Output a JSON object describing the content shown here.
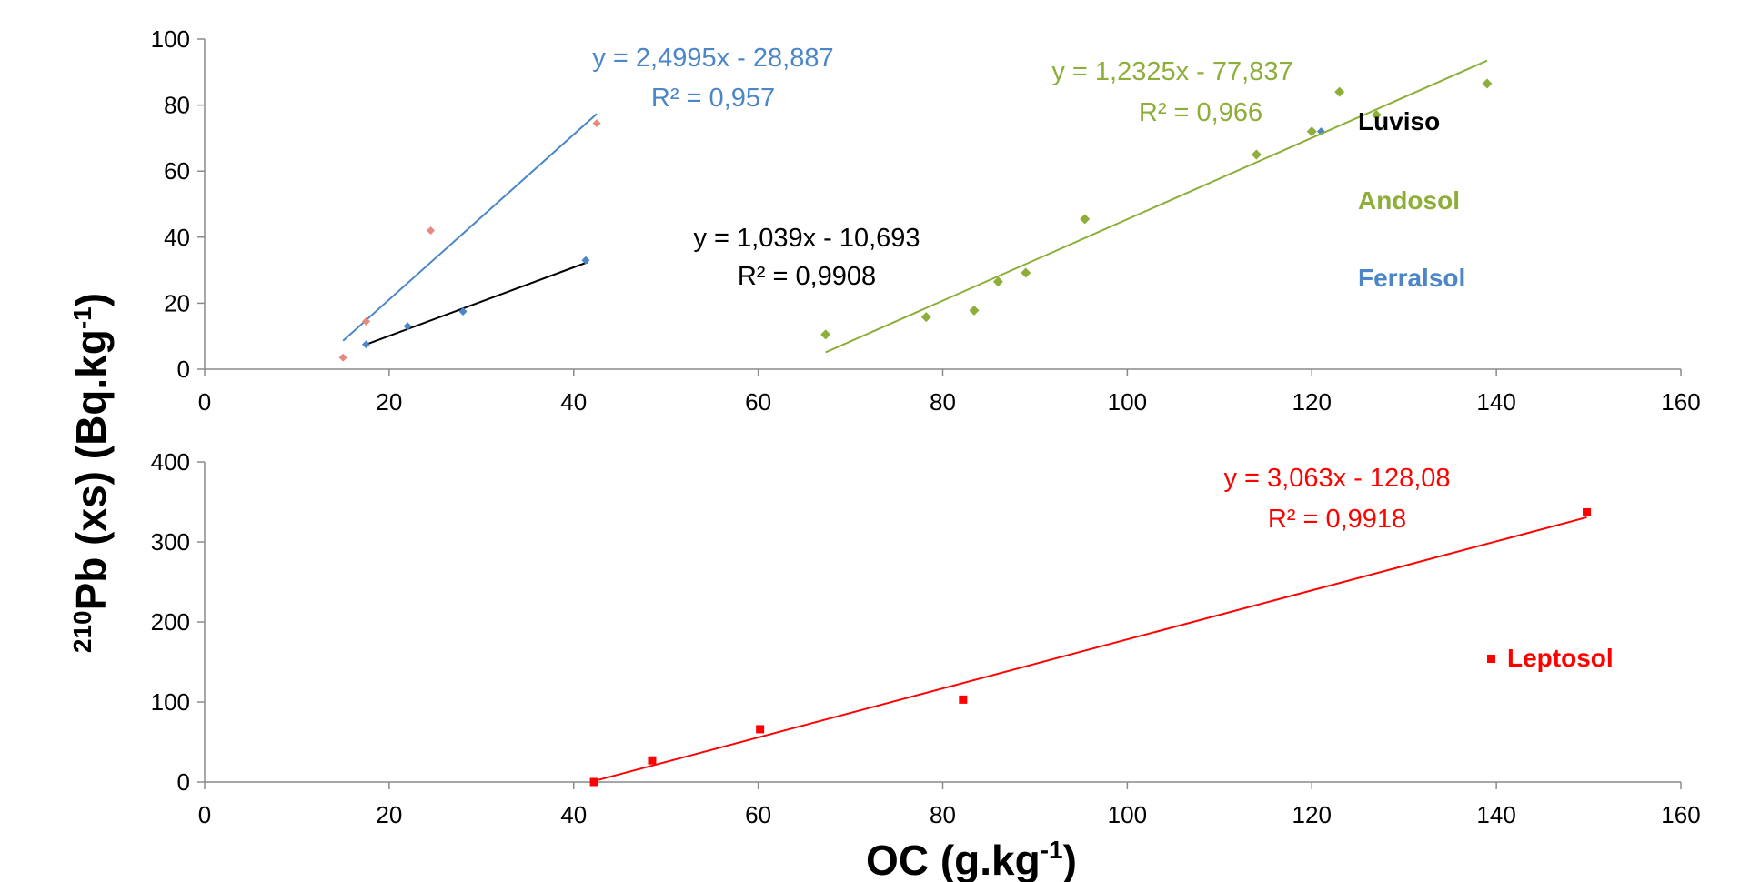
{
  "figure": {
    "ylabel_sup": "210",
    "ylabel_main": "Pb (xs) (Bq.kg",
    "ylabel_exp": "-1",
    "ylabel_close": ")",
    "xlabel_main": "OC (g.kg",
    "xlabel_exp": "-1",
    "xlabel_close": ")"
  },
  "colors": {
    "luviso": "#000000",
    "andosol": "#8DAE38",
    "ferralsol": "#4A86C8",
    "ferralsol_points": "#E8877E",
    "luviso_points": "#4A86C8",
    "leptosol": "#FF0000"
  },
  "chart_data": [
    {
      "type": "scatter",
      "xlim": [
        0,
        160
      ],
      "ylim": [
        0,
        100
      ],
      "x_ticks": [
        "0",
        "20",
        "40",
        "60",
        "80",
        "100",
        "120",
        "140",
        "160"
      ],
      "y_ticks": [
        "0",
        "20",
        "40",
        "60",
        "80",
        "100"
      ],
      "grid": false,
      "legend": [
        "Luviso",
        "Andosol",
        "Ferralsol"
      ],
      "series": [
        {
          "name": "Luviso",
          "points": [
            [
              17.5,
              7.5
            ],
            [
              22,
              13
            ],
            [
              28,
              17.5
            ],
            [
              41.3,
              33
            ],
            [
              121,
              72
            ]
          ],
          "trendline": {
            "x": [
              17.5,
              41.5
            ],
            "equation": "y = 1,039x - 10,693",
            "r2": "R² = 0,9908"
          }
        },
        {
          "name": "Andosol",
          "points": [
            [
              67.3,
              10.5
            ],
            [
              78.2,
              15.8
            ],
            [
              83.4,
              17.8
            ],
            [
              86,
              26.5
            ],
            [
              89,
              29.2
            ],
            [
              95.4,
              45.5
            ],
            [
              114,
              65
            ],
            [
              120,
              72
            ],
            [
              123,
              84
            ],
            [
              127,
              77
            ],
            [
              139,
              86.5
            ]
          ],
          "trendline": {
            "x": [
              67.3,
              139
            ],
            "equation": "y = 1,2325x - 77,837",
            "r2": "R² = 0,966"
          }
        },
        {
          "name": "Ferralsol",
          "points": [
            [
              15,
              3.5
            ],
            [
              17.5,
              14.5
            ],
            [
              24.5,
              42
            ],
            [
              42.5,
              74.5
            ]
          ],
          "trendline": {
            "x": [
              15,
              42.5
            ],
            "equation": "y = 2,4995x - 28,887",
            "r2": "R² = 0,957"
          }
        }
      ]
    },
    {
      "type": "scatter",
      "xlim": [
        0,
        160
      ],
      "ylim": [
        0,
        400
      ],
      "x_ticks": [
        "0",
        "20",
        "40",
        "60",
        "80",
        "100",
        "120",
        "140",
        "160"
      ],
      "y_ticks": [
        "0",
        "100",
        "200",
        "300",
        "400"
      ],
      "grid": false,
      "legend": [
        "Leptosol"
      ],
      "series": [
        {
          "name": "Leptosol",
          "points": [
            [
              42.2,
              0
            ],
            [
              48.5,
              27
            ],
            [
              60.2,
              66
            ],
            [
              82.2,
              103
            ],
            [
              149.8,
              337
            ]
          ],
          "trendline": {
            "x": [
              42.2,
              149.8
            ],
            "equation": "y = 3,063x - 128,08",
            "r2": "R² = 0,9918"
          }
        }
      ]
    }
  ]
}
